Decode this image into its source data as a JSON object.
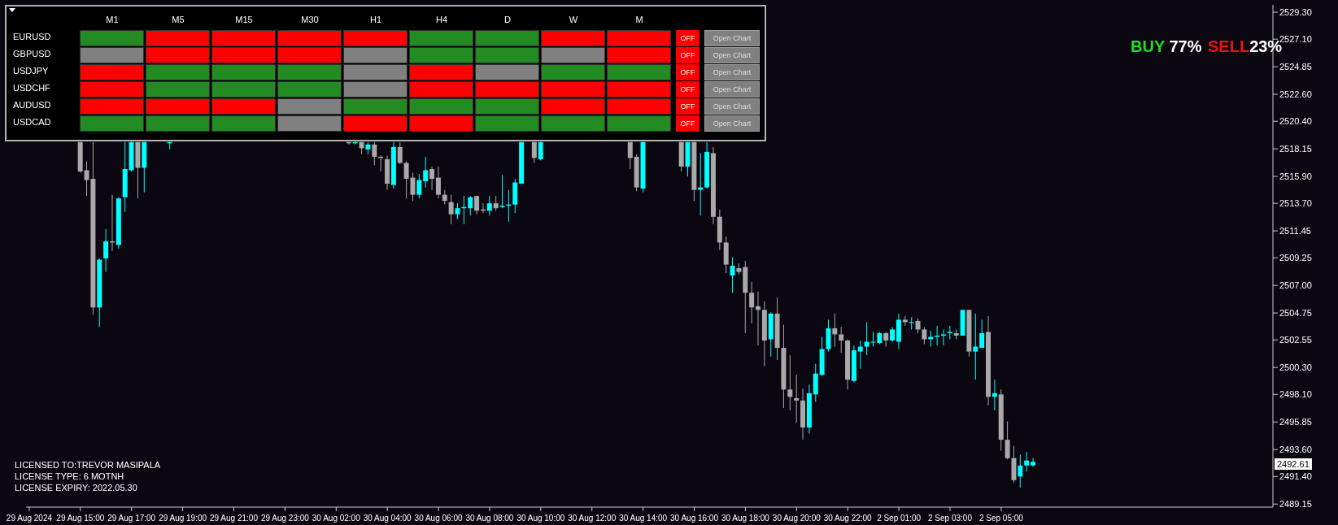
{
  "chart_data": [
    {
      "type": "candlestick",
      "categories": [
        "29 Aug 2024",
        null,
        null,
        null,
        null,
        null,
        null,
        null,
        "29 Aug 15:00",
        null,
        null,
        null,
        null,
        null,
        null,
        null,
        "29 Aug 17:00",
        null,
        null,
        null,
        null,
        null,
        null,
        null,
        "29 Aug 19:00",
        null,
        null,
        null,
        null,
        null,
        null,
        null,
        "29 Aug 21:00",
        null,
        null,
        null,
        null,
        null,
        null,
        null,
        "29 Aug 23:00",
        null,
        null,
        null,
        null,
        null,
        null,
        null,
        "30 Aug 02:00",
        null,
        null,
        null,
        null,
        null,
        null,
        null,
        "30 Aug 04:00",
        null,
        null,
        null,
        null,
        null,
        null,
        null,
        "30 Aug 06:00",
        null,
        null,
        null,
        null,
        null,
        null,
        null,
        "30 Aug 08:00",
        null,
        null,
        null,
        null,
        null,
        null,
        null,
        "30 Aug 10:00",
        null,
        null,
        null,
        null,
        null,
        null,
        null,
        "30 Aug 12:00",
        null,
        null,
        null,
        null,
        null,
        null,
        null,
        "30 Aug 14:00",
        null,
        null,
        null,
        null,
        null,
        null,
        null,
        "30 Aug 16:00",
        null,
        null,
        null,
        null,
        null,
        null,
        null,
        "30 Aug 18:00",
        null,
        null,
        null,
        null,
        null,
        null,
        null,
        "30 Aug 20:00",
        null,
        null,
        null,
        null,
        null,
        null,
        null,
        "30 Aug 22:00",
        null,
        null,
        null,
        null,
        null,
        null,
        null,
        "2 Sep 01:00",
        null,
        null,
        null,
        null,
        null,
        null,
        null,
        "2 Sep 03:00",
        null,
        null,
        null,
        null,
        null,
        null,
        null,
        "2 Sep 05:00",
        null,
        null,
        null,
        null,
        null,
        null,
        null,
        null,
        null,
        null,
        null,
        null,
        null,
        null,
        null,
        null,
        null,
        null,
        null,
        null,
        null,
        null,
        null,
        null,
        null,
        null,
        null,
        null,
        null,
        null,
        null,
        null,
        null,
        null,
        null,
        null,
        null,
        null,
        null,
        null,
        null,
        null
      ],
      "ohlc": [
        null,
        null,
        null,
        null,
        null,
        null,
        null,
        null,
        [
          2518.7,
          2518.7,
          2516.2,
          2516.3
        ],
        [
          2516.4,
          2517.1,
          2514.3,
          2515.6
        ],
        [
          2515.7,
          2518.7,
          2504.6,
          2505.2
        ],
        [
          2505.2,
          2509.2,
          2503.6,
          2509.1
        ],
        [
          2509.2,
          2511.6,
          2508.1,
          2510.6
        ],
        [
          2510.6,
          2514.4,
          2509.8,
          2510.5
        ],
        [
          2510.3,
          2514.2,
          2510.0,
          2514.1
        ],
        [
          2514.2,
          2518.7,
          2513.0,
          2516.5
        ],
        [
          2516.4,
          2518.7,
          2516.3,
          2518.7
        ],
        [
          2518.7,
          2518.7,
          2514.1,
          2516.6
        ],
        [
          2516.6,
          2518.7,
          2514.6,
          2518.7
        ],
        null,
        null,
        null,
        [
          2518.6,
          2518.7,
          2518.1,
          2518.7
        ],
        null,
        null,
        null,
        null,
        null,
        null,
        null,
        null,
        null,
        null,
        null,
        null,
        null,
        null,
        null,
        null,
        null,
        null,
        null,
        null,
        null,
        null,
        null,
        null,
        null,
        null,
        null,
        [
          2518.7,
          2518.7,
          2518.5,
          2518.6
        ],
        [
          2518.6,
          2518.7,
          2518.5,
          2518.7
        ],
        [
          2518.7,
          2518.7,
          2517.7,
          2518.2
        ],
        [
          2518.1,
          2518.7,
          2517.7,
          2518.5
        ],
        [
          2518.5,
          2518.7,
          2516.8,
          2517.5
        ],
        [
          2517.5,
          2517.6,
          2516.3,
          2517.4
        ],
        [
          2517.3,
          2517.6,
          2514.8,
          2515.3
        ],
        [
          2515.2,
          2518.7,
          2514.9,
          2518.3
        ],
        [
          2518.3,
          2518.7,
          2516.9,
          2517.0
        ],
        [
          2517.0,
          2517.1,
          2514.1,
          2515.7
        ],
        [
          2515.8,
          2516.2,
          2513.9,
          2514.4
        ],
        [
          2514.4,
          2516.1,
          2514.1,
          2515.6
        ],
        [
          2515.5,
          2517.5,
          2515.0,
          2516.4
        ],
        [
          2516.5,
          2516.7,
          2514.8,
          2515.7
        ],
        [
          2515.8,
          2516.7,
          2514.1,
          2514.4
        ],
        [
          2514.4,
          2514.8,
          2513.6,
          2513.9
        ],
        [
          2513.8,
          2514.4,
          2512.0,
          2512.8
        ],
        [
          2512.8,
          2513.7,
          2512.4,
          2513.3
        ],
        [
          2513.3,
          2514.3,
          2512.0,
          2513.4
        ],
        [
          2513.3,
          2514.3,
          2512.7,
          2514.2
        ],
        [
          2514.3,
          2514.3,
          2512.8,
          2513.1
        ],
        [
          2513.2,
          2513.7,
          2512.9,
          2513.1
        ],
        [
          2513.1,
          2514.3,
          2512.7,
          2513.7
        ],
        [
          2513.7,
          2514.3,
          2513.1,
          2513.3
        ],
        [
          2513.4,
          2516.0,
          2513.3,
          2513.5
        ],
        [
          2513.5,
          2514.8,
          2512.2,
          2513.6
        ],
        [
          2513.6,
          2515.7,
          2512.9,
          2515.4
        ],
        [
          2515.3,
          2518.7,
          2515.3,
          2518.7
        ],
        null,
        [
          2518.7,
          2518.7,
          2517.0,
          2517.4
        ],
        [
          2517.3,
          2518.7,
          2517.2,
          2518.7
        ],
        null,
        null,
        null,
        null,
        null,
        null,
        null,
        null,
        null,
        null,
        null,
        null,
        null,
        [
          2518.7,
          2518.7,
          2516.5,
          2517.4
        ],
        [
          2517.5,
          2517.7,
          2514.7,
          2515.0
        ],
        [
          2514.9,
          2518.7,
          2514.6,
          2518.7
        ],
        null,
        null,
        null,
        null,
        null,
        [
          2518.7,
          2518.7,
          2516.3,
          2516.7
        ],
        [
          2516.7,
          2518.7,
          2515.9,
          2518.7
        ],
        [
          2518.7,
          2518.7,
          2513.9,
          2514.8
        ],
        [
          2514.8,
          2517.8,
          2512.7,
          2515.0
        ],
        [
          2515.0,
          2518.7,
          2514.9,
          2517.9
        ],
        [
          2517.8,
          2518.3,
          2512.0,
          2512.6
        ],
        [
          2512.6,
          2513.2,
          2509.9,
          2510.5
        ],
        [
          2510.5,
          2511.0,
          2508.0,
          2508.7
        ],
        [
          2507.8,
          2509.3,
          2506.4,
          2508.6
        ],
        [
          2508.4,
          2508.8,
          2507.9,
          2508.1
        ],
        [
          2508.5,
          2509.0,
          2503.1,
          2506.4
        ],
        [
          2506.4,
          2507.3,
          2503.9,
          2505.2
        ],
        [
          2505.3,
          2506.5,
          2502.1,
          2505.0
        ],
        [
          2505.0,
          2505.7,
          2500.4,
          2502.5
        ],
        [
          2502.6,
          2504.8,
          2501.2,
          2504.7
        ],
        [
          2504.7,
          2506.0,
          2500.9,
          2501.9
        ],
        [
          2501.9,
          2503.8,
          2497.0,
          2498.5
        ],
        [
          2498.5,
          2501.3,
          2496.8,
          2497.9
        ],
        [
          2497.8,
          2499.7,
          2495.8,
          2497.6
        ],
        [
          2497.6,
          2498.6,
          2494.4,
          2495.4
        ],
        [
          2495.4,
          2498.9,
          2494.9,
          2498.2
        ],
        [
          2498.1,
          2500.6,
          2497.5,
          2499.8
        ],
        [
          2499.7,
          2502.8,
          2499.6,
          2501.8
        ],
        [
          2501.8,
          2504.2,
          2501.6,
          2503.5
        ],
        [
          2503.5,
          2504.7,
          2502.0,
          2503.0
        ],
        [
          2503.0,
          2503.6,
          2501.5,
          2502.5
        ],
        [
          2502.5,
          2502.6,
          2498.5,
          2499.3
        ],
        [
          2499.2,
          2502.1,
          2499.1,
          2501.7
        ],
        [
          2501.6,
          2502.5,
          2500.2,
          2502.0
        ],
        [
          2502.0,
          2504.0,
          2501.3,
          2502.4
        ],
        [
          2502.4,
          2503.2,
          2502.0,
          2502.4
        ],
        [
          2502.3,
          2503.2,
          2502.2,
          2503.1
        ],
        [
          2503.1,
          2503.2,
          2502.0,
          2502.5
        ],
        [
          2502.5,
          2503.6,
          2502.4,
          2503.4
        ],
        [
          2502.4,
          2504.7,
          2501.8,
          2504.2
        ],
        [
          2504.2,
          2504.5,
          2503.7,
          2504.0
        ],
        [
          2504.0,
          2504.4,
          2503.4,
          2504.0
        ],
        [
          2504.1,
          2504.3,
          2503.1,
          2503.4
        ],
        [
          2503.4,
          2503.6,
          2502.2,
          2502.6
        ],
        [
          2502.6,
          2503.3,
          2502.0,
          2502.8
        ],
        [
          2502.8,
          2503.7,
          2502.1,
          2502.9
        ],
        [
          2502.9,
          2503.4,
          2502.1,
          2503.0
        ],
        [
          2503.1,
          2503.7,
          2502.6,
          2503.2
        ],
        [
          2503.1,
          2503.4,
          2502.6,
          2502.9
        ],
        [
          2502.9,
          2505.0,
          2502.9,
          2505.0
        ],
        [
          2505.0,
          2505.0,
          2501.2,
          2501.6
        ],
        [
          2501.6,
          2504.7,
          2499.3,
          2502.0
        ],
        [
          2501.9,
          2504.2,
          2501.9,
          2503.1
        ],
        [
          2503.2,
          2504.5,
          2497.2,
          2497.9
        ],
        [
          2497.9,
          2499.3,
          2496.8,
          2498.2
        ],
        [
          2498.1,
          2498.5,
          2493.5,
          2494.4
        ],
        [
          2494.4,
          2495.9,
          2492.8,
          2492.9
        ],
        [
          2492.9,
          2493.9,
          2490.9,
          2491.1
        ],
        [
          2491.4,
          2493.2,
          2490.5,
          2492.3
        ],
        [
          2492.3,
          2493.4,
          2491.8,
          2492.7
        ],
        [
          2492.3,
          2492.9,
          2492.2,
          2492.6
        ],
        null,
        null,
        null,
        null,
        null,
        null,
        null,
        null,
        null,
        null,
        null,
        null,
        null,
        null,
        null,
        null,
        null,
        null,
        null,
        null,
        null,
        null,
        null,
        null,
        null,
        null,
        null,
        null,
        null,
        null,
        null,
        null,
        null,
        null,
        null,
        null,
        null
      ],
      "colors": [
        null,
        null,
        null,
        null,
        null,
        null,
        null,
        null,
        "#a9a9a9",
        "#a9a9a9",
        "#a9a9a9",
        "#00ffff",
        "#00ffff",
        "#a9a9a9",
        "#00ffff",
        "#00ffff",
        "#00ffff",
        "#a9a9a9",
        "#00ffff",
        null,
        null,
        null,
        "#00ffff",
        null,
        null,
        null,
        null,
        null,
        null,
        null,
        null,
        null,
        null,
        null,
        null,
        null,
        null,
        null,
        null,
        null,
        null,
        null,
        null,
        null,
        null,
        null,
        null,
        null,
        null,
        null,
        "#a9a9a9",
        "#00ffff",
        "#a9a9a9",
        "#00ffff",
        "#a9a9a9",
        "#a9a9a9",
        "#a9a9a9",
        "#00ffff",
        "#a9a9a9",
        "#a9a9a9",
        "#a9a9a9",
        "#00ffff",
        "#00ffff",
        "#a9a9a9",
        "#a9a9a9",
        "#a9a9a9",
        "#a9a9a9",
        "#00ffff",
        "#00ffff",
        "#00ffff",
        "#a9a9a9",
        "#a9a9a9",
        "#00ffff",
        "#a9a9a9",
        "#00ffff",
        "#00ffff",
        "#00ffff",
        "#00ffff",
        null,
        "#a9a9a9",
        "#00ffff",
        null,
        null,
        null,
        null,
        null,
        null,
        null,
        null,
        null,
        null,
        null,
        null,
        null,
        "#a9a9a9",
        "#a9a9a9",
        "#00ffff",
        null,
        null,
        null,
        null,
        null,
        "#a9a9a9",
        "#00ffff",
        "#a9a9a9",
        "#00ffff",
        "#00ffff",
        "#a9a9a9",
        "#a9a9a9",
        "#a9a9a9",
        "#00ffff",
        "#a9a9a9",
        "#a9a9a9",
        "#a9a9a9",
        "#a9a9a9",
        "#a9a9a9",
        "#00ffff",
        "#a9a9a9",
        "#a9a9a9",
        "#a9a9a9",
        "#a9a9a9",
        "#a9a9a9",
        "#00ffff",
        "#00ffff",
        "#00ffff",
        "#00ffff",
        "#a9a9a9",
        "#a9a9a9",
        "#a9a9a9",
        "#00ffff",
        "#00ffff",
        "#00ffff",
        "#00ffff",
        "#00ffff",
        "#a9a9a9",
        "#00ffff",
        "#00ffff",
        "#a9a9a9",
        "#00ffff",
        "#a9a9a9",
        "#a9a9a9",
        "#00ffff",
        "#00ffff",
        "#00ffff",
        "#00ffff",
        "#a9a9a9",
        "#00ffff",
        "#a9a9a9",
        "#00ffff",
        "#00ffff",
        "#a9a9a9",
        "#00ffff",
        "#a9a9a9",
        "#a9a9a9",
        "#a9a9a9",
        "#00ffff",
        "#00ffff",
        "#00ffff",
        null,
        null,
        null,
        null,
        null,
        null,
        null,
        null,
        null,
        null,
        null,
        null,
        null,
        null,
        null,
        null,
        null,
        null,
        null,
        null,
        null,
        null,
        null,
        null,
        null,
        null,
        null,
        null,
        null,
        null,
        null,
        null,
        null,
        null,
        null,
        null,
        null
      ],
      "ylim": [
        2488.9,
        2529.9
      ],
      "yticks": [
        {
          "value": 2529.3,
          "label": "2529.30"
        },
        {
          "value": 2527.1,
          "label": "2527.10"
        },
        2524.85,
        {
          "value": 2522.6,
          "label": "2522.60"
        },
        {
          "value": 2520.4,
          "label": "2520.40"
        },
        2518.15,
        {
          "value": 2515.9,
          "label": "2515.90"
        },
        {
          "value": 2513.7,
          "label": "2513.70"
        },
        2511.45,
        2509.25,
        {
          "value": 2507,
          "label": "2507.00"
        },
        2504.75,
        2502.55,
        {
          "value": 2500.3,
          "label": "2500.30"
        },
        {
          "value": 2498.1,
          "label": "2498.10"
        },
        2495.85,
        {
          "value": 2493.6,
          "label": "2493.60"
        },
        {
          "value": 2491.4,
          "label": "2491.40"
        },
        2489.15
      ],
      "annotations": [
        "BUY 77%",
        "SELL23%",
        "LICENSED TO:TREVOR MASIPALA",
        "LICENSE TYPE: 6 MOTNH",
        "LICENSE EXPIRY: 2022.05.30",
        "2492.61"
      ]
    },
    {
      "type": "other",
      "categories": [
        "M1",
        "M5",
        "M15",
        "M30",
        "H1",
        "H4",
        "D",
        "W",
        "M"
      ],
      "y_categories": [
        "EURUSD",
        "GBPUSD",
        "USDJPY",
        "USDCHF",
        "AUDUSD",
        "USDCAD"
      ],
      "colors": [
        [
          "#228b22",
          "#ff0000",
          "#ff0000",
          "#ff0000",
          "#ff0000",
          "#228b22",
          "#228b22",
          "#ff0000",
          "#ff0000"
        ],
        [
          "#808080",
          "#ff0000",
          "#ff0000",
          "#ff0000",
          "#808080",
          "#228b22",
          "#228b22",
          "#808080",
          "#ff0000"
        ],
        [
          "#ff0000",
          "#228b22",
          "#228b22",
          "#228b22",
          "#808080",
          "#ff0000",
          "#808080",
          "#228b22",
          "#228b22"
        ],
        [
          "#ff0000",
          "#228b22",
          "#228b22",
          "#228b22",
          "#808080",
          "#ff0000",
          "#ff0000",
          "#ff0000",
          "#ff0000"
        ],
        [
          "#ff0000",
          "#ff0000",
          "#ff0000",
          "#808080",
          "#228b22",
          "#228b22",
          "#228b22",
          "#ff0000",
          "#ff0000"
        ],
        [
          "#228b22",
          "#228b22",
          "#228b22",
          "#808080",
          "#ff0000",
          "#ff0000",
          "#228b22",
          "#228b22",
          "#228b22"
        ]
      ],
      "annotations": [
        "OFF",
        "Open Chart",
        "OFF",
        "Open Chart",
        "OFF",
        "Open Chart",
        "OFF",
        "Open Chart",
        "OFF",
        "Open Chart",
        "OFF",
        "Open Chart"
      ]
    }
  ]
}
